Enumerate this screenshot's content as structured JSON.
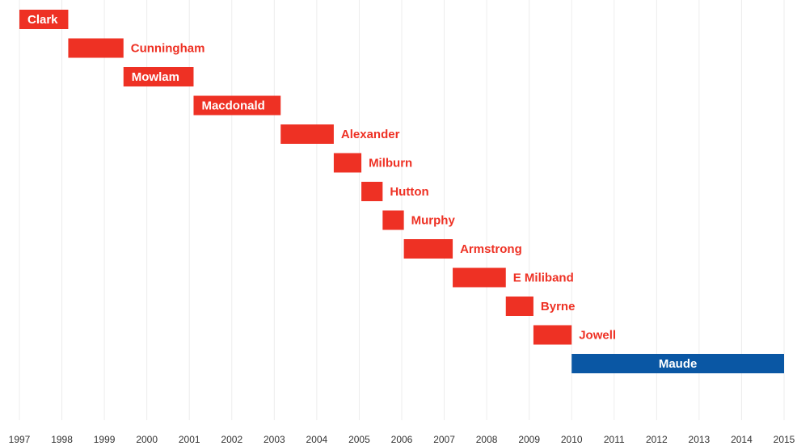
{
  "chart_data": {
    "type": "bar",
    "orientation": "horizontal-timeline",
    "title": "",
    "xlabel": "",
    "ylabel": "",
    "xlim": [
      1997,
      2015
    ],
    "grid": true,
    "x_ticks": [
      "1997",
      "1998",
      "1999",
      "2000",
      "2001",
      "2002",
      "2003",
      "2004",
      "2005",
      "2006",
      "2007",
      "2008",
      "2009",
      "2010",
      "2011",
      "2012",
      "2013",
      "2014",
      "2015"
    ],
    "colors": {
      "labour": "#ee3124",
      "conservative": "#0a57a4",
      "grid": "#ececec"
    },
    "series": [
      {
        "name": "Clark",
        "start": 1997.0,
        "end": 1998.15,
        "party": "labour",
        "label_position": "inside"
      },
      {
        "name": "Cunningham",
        "start": 1998.15,
        "end": 1999.45,
        "party": "labour",
        "label_position": "outside"
      },
      {
        "name": "Mowlam",
        "start": 1999.45,
        "end": 2001.1,
        "party": "labour",
        "label_position": "inside"
      },
      {
        "name": "Macdonald",
        "start": 2001.1,
        "end": 2003.15,
        "party": "labour",
        "label_position": "inside"
      },
      {
        "name": "Alexander",
        "start": 2003.15,
        "end": 2004.4,
        "party": "labour",
        "label_position": "outside"
      },
      {
        "name": "Milburn",
        "start": 2004.4,
        "end": 2005.05,
        "party": "labour",
        "label_position": "outside"
      },
      {
        "name": "Hutton",
        "start": 2005.05,
        "end": 2005.55,
        "party": "labour",
        "label_position": "outside"
      },
      {
        "name": "Murphy",
        "start": 2005.55,
        "end": 2006.05,
        "party": "labour",
        "label_position": "outside"
      },
      {
        "name": "Armstrong",
        "start": 2006.05,
        "end": 2007.2,
        "party": "labour",
        "label_position": "outside"
      },
      {
        "name": "E Miliband",
        "start": 2007.2,
        "end": 2008.45,
        "party": "labour",
        "label_position": "outside"
      },
      {
        "name": "Byrne",
        "start": 2008.45,
        "end": 2009.1,
        "party": "labour",
        "label_position": "outside"
      },
      {
        "name": "Jowell",
        "start": 2009.1,
        "end": 2010.0,
        "party": "labour",
        "label_position": "outside"
      },
      {
        "name": "Maude",
        "start": 2010.0,
        "end": 2015.0,
        "party": "conservative",
        "label_position": "inside"
      }
    ]
  }
}
